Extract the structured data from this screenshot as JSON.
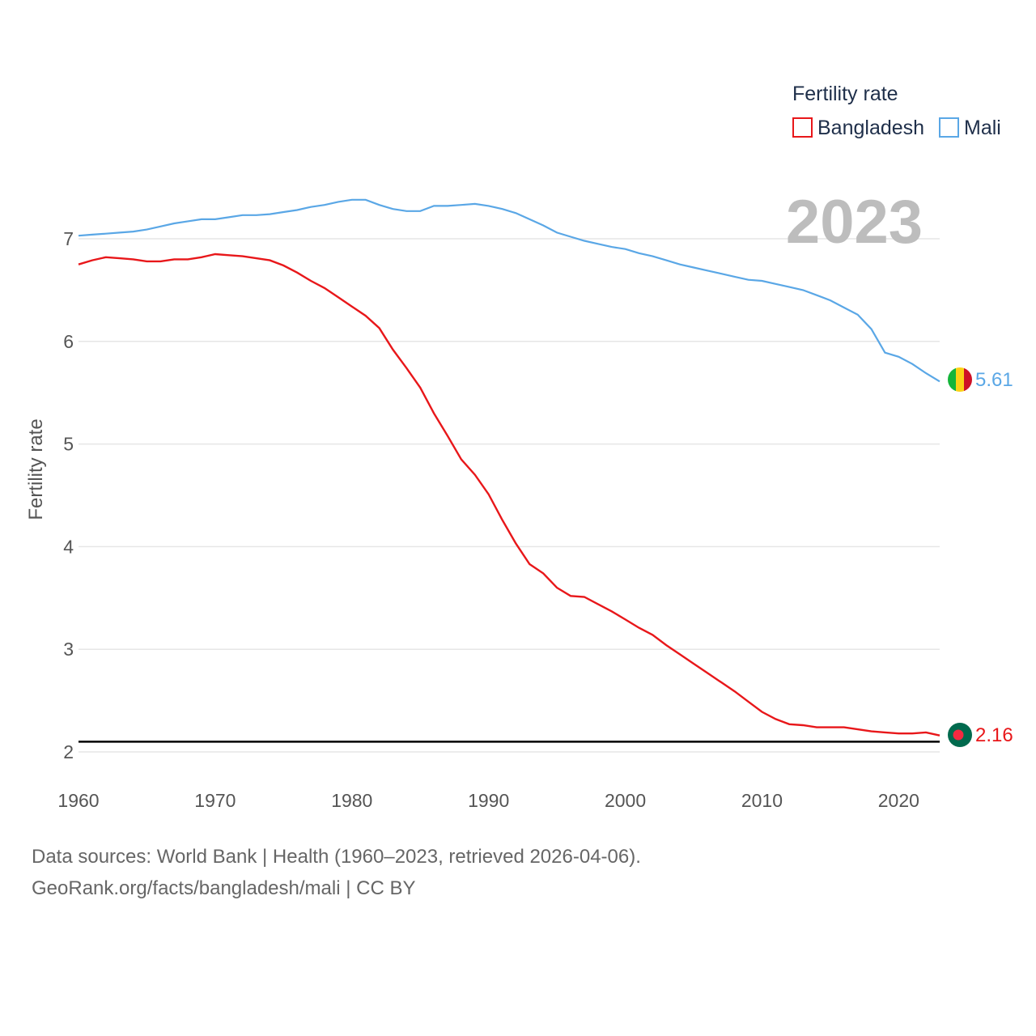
{
  "chart_data": {
    "type": "line",
    "title": "",
    "year_label": "2023",
    "legend_title": "Fertility rate",
    "xlabel": "",
    "ylabel": "Fertility rate",
    "xlim": [
      1960,
      2023
    ],
    "ylim": [
      1.9,
      7.5
    ],
    "xticks": [
      1960,
      1970,
      1980,
      1990,
      2000,
      2010,
      2020
    ],
    "yticks": [
      2,
      3,
      4,
      5,
      6,
      7
    ],
    "reference_line": 2.1,
    "x": [
      1960,
      1961,
      1962,
      1963,
      1964,
      1965,
      1966,
      1967,
      1968,
      1969,
      1970,
      1971,
      1972,
      1973,
      1974,
      1975,
      1976,
      1977,
      1978,
      1979,
      1980,
      1981,
      1982,
      1983,
      1984,
      1985,
      1986,
      1987,
      1988,
      1989,
      1990,
      1991,
      1992,
      1993,
      1994,
      1995,
      1996,
      1997,
      1998,
      1999,
      2000,
      2001,
      2002,
      2003,
      2004,
      2005,
      2006,
      2007,
      2008,
      2009,
      2010,
      2011,
      2012,
      2013,
      2014,
      2015,
      2016,
      2017,
      2018,
      2019,
      2020,
      2021,
      2022,
      2023
    ],
    "series": [
      {
        "name": "Bangladesh",
        "color": "#e8171a",
        "end_label": "2.16",
        "values": [
          6.75,
          6.79,
          6.82,
          6.81,
          6.8,
          6.78,
          6.78,
          6.8,
          6.8,
          6.82,
          6.85,
          6.84,
          6.83,
          6.81,
          6.79,
          6.74,
          6.67,
          6.59,
          6.52,
          6.43,
          6.34,
          6.25,
          6.13,
          5.92,
          5.74,
          5.55,
          5.3,
          5.08,
          4.85,
          4.7,
          4.51,
          4.26,
          4.03,
          3.83,
          3.74,
          3.6,
          3.52,
          3.51,
          3.44,
          3.37,
          3.29,
          3.21,
          3.14,
          3.04,
          2.95,
          2.86,
          2.77,
          2.68,
          2.59,
          2.49,
          2.39,
          2.32,
          2.27,
          2.26,
          2.24,
          2.24,
          2.24,
          2.22,
          2.2,
          2.19,
          2.18,
          2.18,
          2.19,
          2.16
        ]
      },
      {
        "name": "Mali",
        "color": "#5aa7e6",
        "end_label": "5.61",
        "values": [
          7.03,
          7.04,
          7.05,
          7.06,
          7.07,
          7.09,
          7.12,
          7.15,
          7.17,
          7.19,
          7.19,
          7.21,
          7.23,
          7.23,
          7.24,
          7.26,
          7.28,
          7.31,
          7.33,
          7.36,
          7.38,
          7.38,
          7.33,
          7.29,
          7.27,
          7.27,
          7.32,
          7.32,
          7.33,
          7.34,
          7.32,
          7.29,
          7.25,
          7.19,
          7.13,
          7.06,
          7.02,
          6.98,
          6.95,
          6.92,
          6.9,
          6.86,
          6.83,
          6.79,
          6.75,
          6.72,
          6.69,
          6.66,
          6.63,
          6.6,
          6.59,
          6.56,
          6.53,
          6.5,
          6.45,
          6.4,
          6.33,
          6.26,
          6.12,
          5.89,
          5.85,
          5.78,
          5.69,
          5.61
        ]
      }
    ]
  },
  "source": {
    "line1": "Data sources: World Bank | Health (1960–2023, retrieved 2026-04-06).",
    "line2": "GeoRank.org/facts/bangladesh/mali | CC BY"
  }
}
